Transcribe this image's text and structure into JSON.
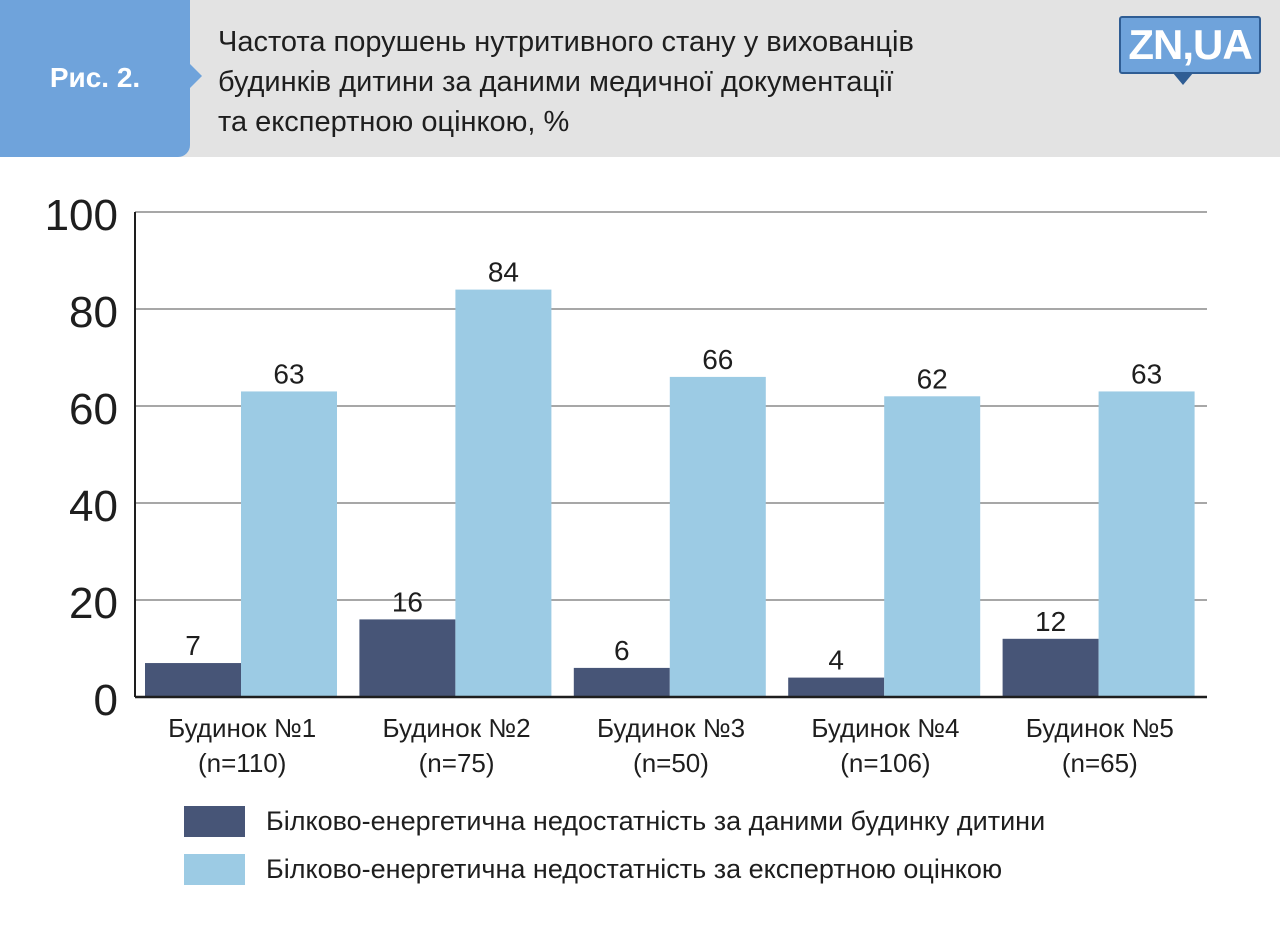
{
  "header": {
    "fig_label": "Рис. 2.",
    "title_lines": [
      "Частота порушень нутритивного стану у вихованців",
      "будинків дитини за даними медичної документації",
      "та експертною оцінкою, %"
    ],
    "logo_text": "ZN,UA"
  },
  "colors": {
    "series1": "#475577",
    "series2": "#9ccbe4",
    "header_bg": "#e3e3e3",
    "tab_bg": "#6fa3db"
  },
  "chart_data": {
    "type": "bar",
    "title": "Частота порушень нутритивного стану у вихованців будинків дитини за даними медичної документації та експертною оцінкою, %",
    "categories": [
      [
        "Будинок №1",
        "(n=110)"
      ],
      [
        "Будинок №2",
        "(n=75)"
      ],
      [
        "Будинок №3",
        "(n=50)"
      ],
      [
        "Будинок №4",
        "(n=106)"
      ],
      [
        "Будинок №5",
        "(n=65)"
      ]
    ],
    "series": [
      {
        "name": "Білково-енергетична недостатність за даними будинку дитини",
        "values": [
          7,
          16,
          6,
          4,
          12
        ]
      },
      {
        "name": "Білково-енергетична недостатність за експертною оцінкою",
        "values": [
          63,
          84,
          66,
          62,
          63
        ]
      }
    ],
    "ylim": [
      0,
      100
    ],
    "yticks": [
      0,
      20,
      40,
      60,
      80,
      100
    ],
    "xlabel": "",
    "ylabel": "",
    "grid": true,
    "legend_position": "bottom"
  }
}
